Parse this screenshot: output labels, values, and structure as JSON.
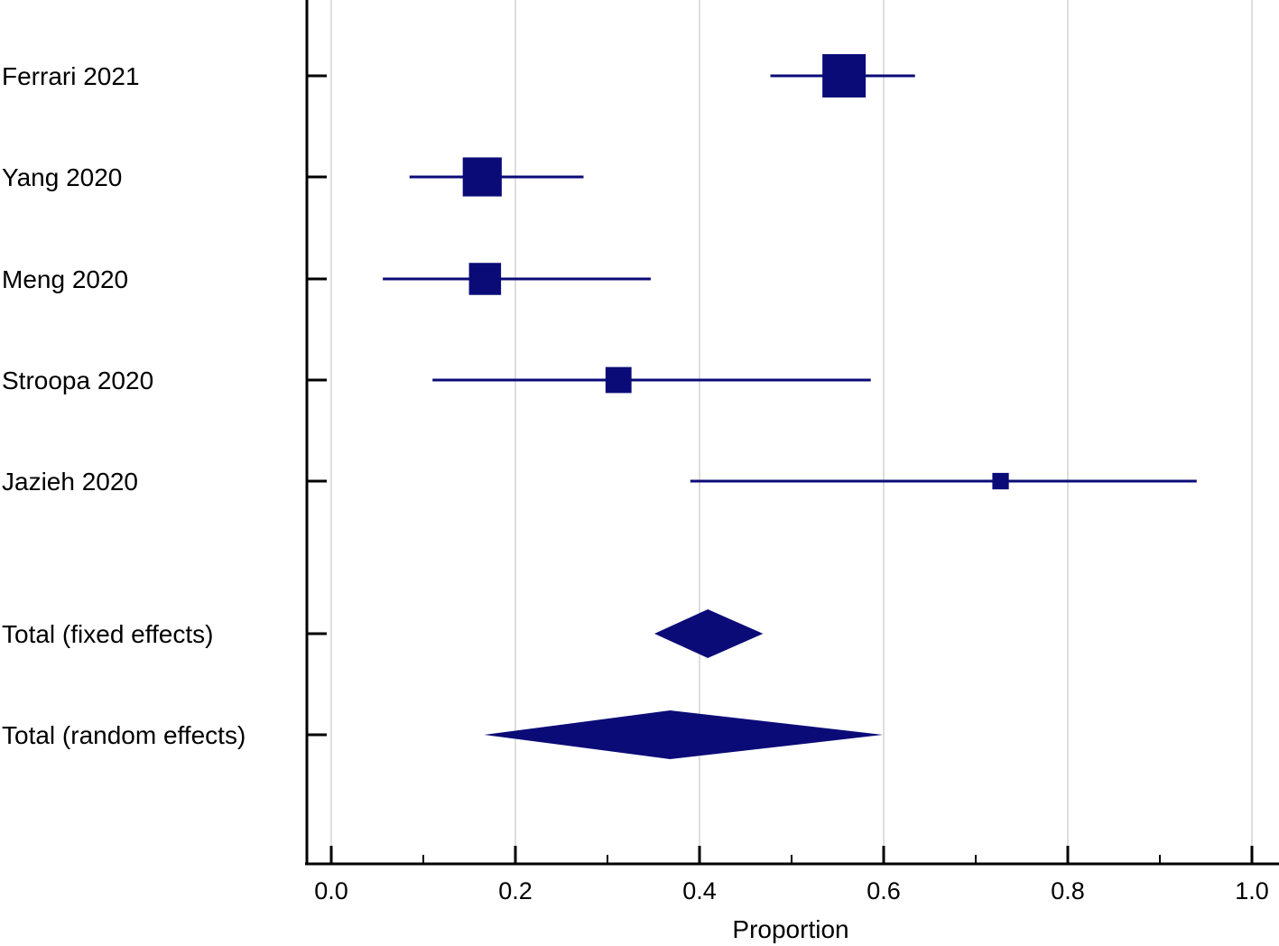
{
  "chart_data": {
    "type": "forest",
    "xlabel": "Proportion",
    "xlim": [
      0.0,
      1.0
    ],
    "xticks": [
      0.0,
      0.2,
      0.4,
      0.6,
      0.8,
      1.0
    ],
    "xtick_labels": [
      "0.0",
      "0.2",
      "0.4",
      "0.6",
      "0.8",
      "1.0"
    ],
    "minor_xticks": [
      0.1,
      0.3,
      0.5,
      0.7,
      0.9
    ],
    "grid": "vertical",
    "marker_color": "#0b0b78",
    "studies": [
      {
        "label": "Ferrari 2021",
        "estimate": 0.557,
        "ci_low": 0.477,
        "ci_high": 0.634,
        "weight_rel": 1.0
      },
      {
        "label": "Yang 2020",
        "estimate": 0.164,
        "ci_low": 0.085,
        "ci_high": 0.274,
        "weight_rel": 0.9
      },
      {
        "label": "Meng 2020",
        "estimate": 0.167,
        "ci_low": 0.056,
        "ci_high": 0.347,
        "weight_rel": 0.74
      },
      {
        "label": "Stroopa 2020",
        "estimate": 0.312,
        "ci_low": 0.11,
        "ci_high": 0.586,
        "weight_rel": 0.6
      },
      {
        "label": "Jazieh 2020",
        "estimate": 0.727,
        "ci_low": 0.39,
        "ci_high": 0.94,
        "weight_rel": 0.38
      }
    ],
    "totals": [
      {
        "label": "Total (fixed effects)",
        "estimate": 0.409,
        "ci_low": 0.351,
        "ci_high": 0.469
      },
      {
        "label": "Total (random effects)",
        "estimate": 0.368,
        "ci_low": 0.166,
        "ci_high": 0.599
      }
    ]
  }
}
